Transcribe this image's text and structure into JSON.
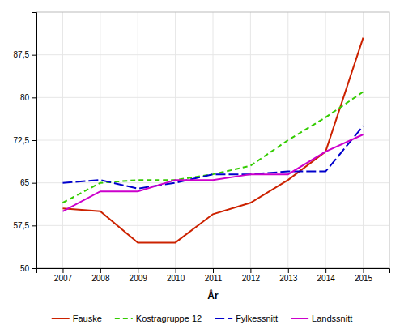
{
  "chart_data": {
    "type": "line",
    "xlabel": "År",
    "x": [
      2007,
      2008,
      2009,
      2010,
      2011,
      2012,
      2013,
      2014,
      2015
    ],
    "series": [
      {
        "name": "Fauske",
        "color": "#cc2200",
        "line_style": "solid",
        "values": [
          60.5,
          60.0,
          54.5,
          54.5,
          59.5,
          61.5,
          65.5,
          70.5,
          90.5
        ]
      },
      {
        "name": "Kostragruppe 12",
        "color": "#33cc00",
        "line_style": "dashed",
        "values": [
          61.5,
          65.0,
          65.5,
          65.5,
          66.5,
          68.0,
          72.5,
          76.5,
          81.0
        ]
      },
      {
        "name": "Fylkessnitt",
        "color": "#0000cc",
        "line_style": "longdash",
        "values": [
          65.0,
          65.5,
          64.0,
          65.0,
          66.5,
          66.5,
          67.0,
          67.0,
          75.0
        ]
      },
      {
        "name": "Landssnitt",
        "color": "#cc00cc",
        "line_style": "solid",
        "values": [
          60.0,
          63.5,
          63.5,
          65.5,
          65.5,
          66.5,
          66.5,
          70.5,
          73.5
        ]
      }
    ],
    "xlim": [
      2006.3,
      2015.7
    ],
    "xticks": [
      2007,
      2008,
      2009,
      2010,
      2011,
      2012,
      2013,
      2014,
      2015
    ],
    "ylim": [
      50,
      95
    ],
    "yticks": [
      50,
      {
        "value": 57.5,
        "label": "57,5"
      },
      65,
      {
        "value": 72.5,
        "label": "72,5"
      },
      80,
      {
        "value": 87.5,
        "label": "87,5"
      }
    ],
    "grid": true,
    "legend": "bottom"
  }
}
